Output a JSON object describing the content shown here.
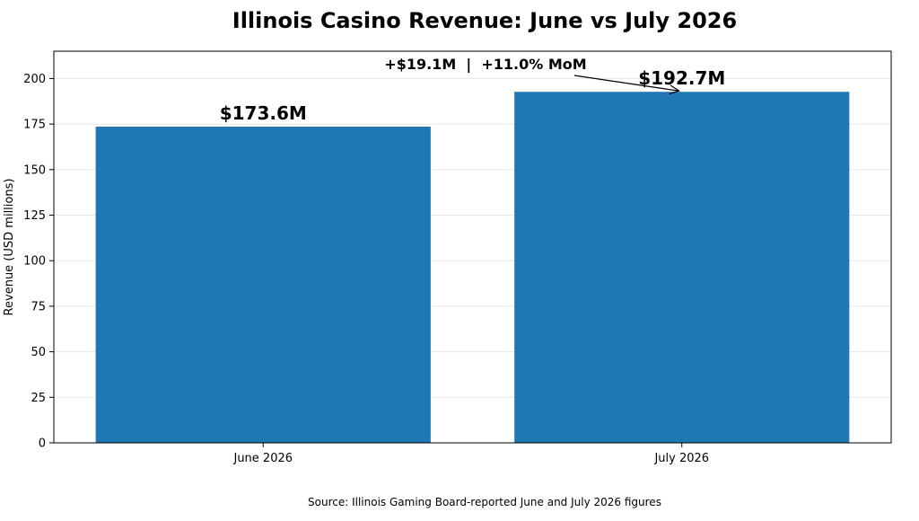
{
  "chart_data": {
    "type": "bar",
    "title": "Illinois Casino Revenue: June vs July 2026",
    "xlabel": "",
    "ylabel": "Revenue (USD millions)",
    "categories": [
      "June 2026",
      "July 2026"
    ],
    "values": [
      173.6,
      192.7
    ],
    "data_labels": [
      "$173.6M",
      "$192.7M"
    ],
    "ylim": [
      0,
      215
    ],
    "yticks": [
      0,
      25,
      50,
      75,
      100,
      125,
      150,
      175,
      200
    ],
    "grid": "y",
    "legend": "none",
    "bar_color": "#1f77b4",
    "annotation": {
      "text": "+$19.1M  |  +11.0% MoM",
      "points_to_category": "July 2026",
      "points_to_value": 192.7
    },
    "footnote": "Source: Illinois Gaming Board-reported June and July 2026 figures"
  }
}
